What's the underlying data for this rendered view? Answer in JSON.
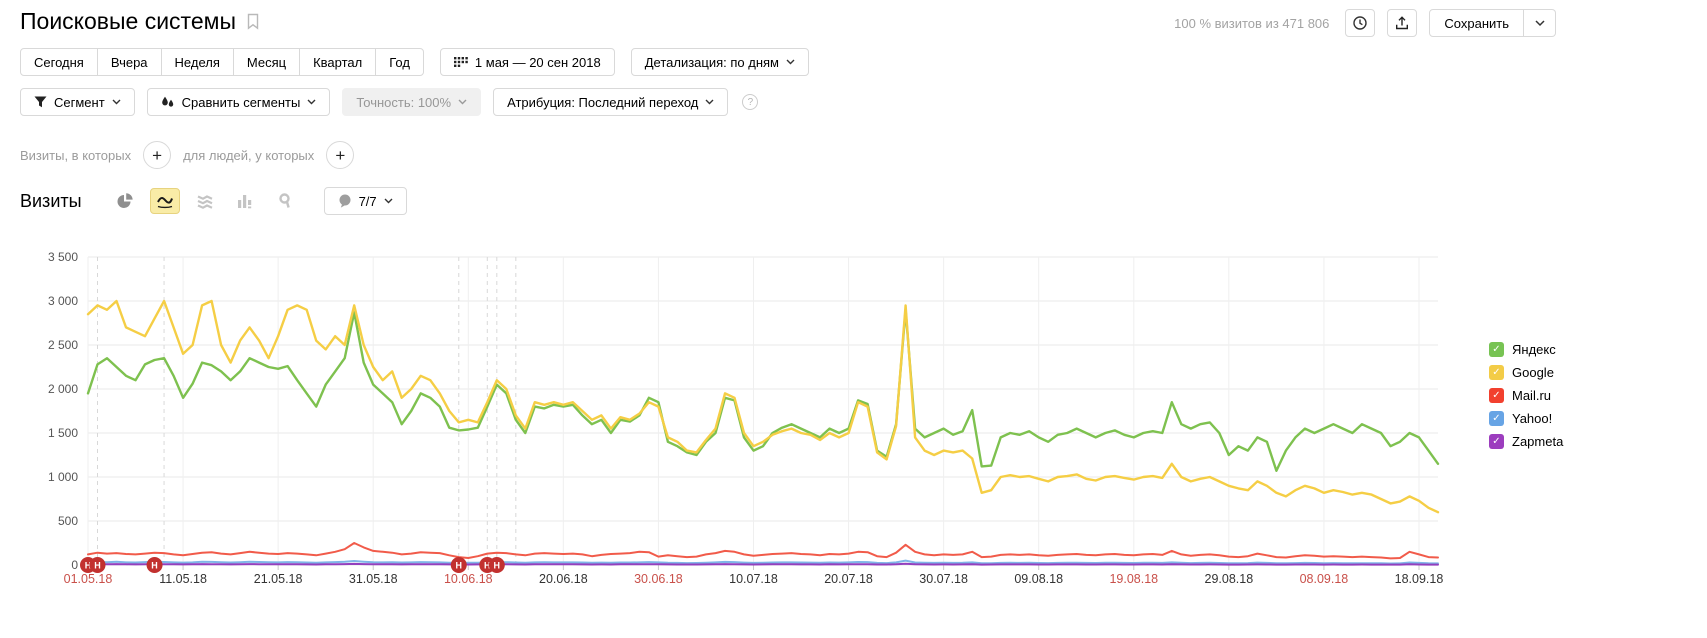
{
  "header": {
    "title": "Поисковые системы",
    "visits_meta": "100 % визитов из 471 806",
    "save_label": "Сохранить"
  },
  "toolbar": {
    "periods": [
      "Сегодня",
      "Вчера",
      "Неделя",
      "Месяц",
      "Квартал",
      "Год"
    ],
    "date_range": "1 мая — 20 сен 2018",
    "detalization": "Детализация: по дням"
  },
  "filters": {
    "segment": "Сегмент",
    "compare_segments": "Сравнить сегменты",
    "accuracy": "Точность: 100%",
    "attribution": "Атрибуция: Последний переход",
    "help": "?"
  },
  "conditions": {
    "visits_label": "Визиты, в которых",
    "people_label": "для людей, у которых",
    "plus": "+"
  },
  "metric": {
    "title": "Визиты",
    "annotations": "7/7"
  },
  "colors": {
    "grid": "#eaeaea",
    "dashed": "#d8d8d8",
    "tick_text": "#333333",
    "tick_text_holiday": "#c9504a",
    "ytick_text": "#555555",
    "annotation_bg": "#c2312f",
    "annotation_text": "#ffffff"
  },
  "legend": [
    {
      "label": "Яндекс",
      "color": "#77C353"
    },
    {
      "label": "Google",
      "color": "#F3CC47"
    },
    {
      "label": "Mail.ru",
      "color": "#F2402E"
    },
    {
      "label": "Yahoo!",
      "color": "#67A4E5"
    },
    {
      "label": "Zapmeta",
      "color": "#9C3DBE"
    }
  ],
  "chart_data": {
    "type": "line",
    "title": "Визиты",
    "x_start": "01.05.18",
    "x_end": "20.09.18",
    "days": 143,
    "ylim": [
      0,
      3500
    ],
    "ytick_values": [
      0,
      500,
      1000,
      1500,
      2000,
      2500,
      3000,
      3500
    ],
    "ytick_labels": [
      "0",
      "500",
      "1 000",
      "1 500",
      "2 000",
      "2 500",
      "3 000",
      "3 500"
    ],
    "xticks": [
      {
        "day": 0,
        "label": "01.05.18",
        "holiday": true
      },
      {
        "day": 10,
        "label": "11.05.18",
        "holiday": false
      },
      {
        "day": 20,
        "label": "21.05.18",
        "holiday": false
      },
      {
        "day": 30,
        "label": "31.05.18",
        "holiday": false
      },
      {
        "day": 40,
        "label": "10.06.18",
        "holiday": true
      },
      {
        "day": 50,
        "label": "20.06.18",
        "holiday": false
      },
      {
        "day": 60,
        "label": "30.06.18",
        "holiday": true
      },
      {
        "day": 70,
        "label": "10.07.18",
        "holiday": false
      },
      {
        "day": 80,
        "label": "20.07.18",
        "holiday": false
      },
      {
        "day": 90,
        "label": "30.07.18",
        "holiday": false
      },
      {
        "day": 100,
        "label": "09.08.18",
        "holiday": false
      },
      {
        "day": 110,
        "label": "19.08.18",
        "holiday": true
      },
      {
        "day": 120,
        "label": "29.08.18",
        "holiday": false
      },
      {
        "day": 130,
        "label": "08.09.18",
        "holiday": true
      },
      {
        "day": 140,
        "label": "18.09.18",
        "holiday": false
      }
    ],
    "dashed_days": [
      1,
      8,
      39,
      42,
      43,
      45
    ],
    "annotation_days": [
      0,
      1,
      7,
      39,
      42,
      43
    ],
    "annotation_glyph": "Н",
    "series": [
      {
        "name": "Яндекс",
        "color": "#7EC14F",
        "width": 2.4,
        "values": [
          1950,
          2280,
          2350,
          2250,
          2150,
          2100,
          2280,
          2330,
          2350,
          2150,
          1900,
          2060,
          2300,
          2270,
          2200,
          2100,
          2200,
          2350,
          2300,
          2250,
          2230,
          2260,
          2100,
          1950,
          1800,
          2050,
          2200,
          2350,
          2870,
          2300,
          2050,
          1950,
          1850,
          1600,
          1750,
          1950,
          1900,
          1800,
          1560,
          1530,
          1540,
          1560,
          1800,
          2050,
          1950,
          1650,
          1500,
          1800,
          1780,
          1820,
          1800,
          1820,
          1700,
          1600,
          1650,
          1500,
          1650,
          1630,
          1700,
          1900,
          1850,
          1400,
          1350,
          1280,
          1250,
          1400,
          1500,
          1900,
          1870,
          1450,
          1300,
          1350,
          1500,
          1560,
          1600,
          1550,
          1500,
          1450,
          1550,
          1500,
          1550,
          1870,
          1830,
          1300,
          1230,
          1600,
          2900,
          1550,
          1450,
          1500,
          1550,
          1480,
          1520,
          1760,
          1120,
          1130,
          1450,
          1500,
          1480,
          1520,
          1450,
          1400,
          1480,
          1500,
          1550,
          1500,
          1450,
          1500,
          1530,
          1480,
          1450,
          1500,
          1520,
          1500,
          1850,
          1600,
          1550,
          1600,
          1620,
          1500,
          1250,
          1350,
          1300,
          1450,
          1400,
          1070,
          1300,
          1450,
          1550,
          1500,
          1550,
          1600,
          1550,
          1500,
          1600,
          1550,
          1500,
          1350,
          1400,
          1500,
          1450,
          1300,
          1150
        ]
      },
      {
        "name": "Google",
        "color": "#F5CE45",
        "width": 2.4,
        "values": [
          2850,
          2950,
          2900,
          3000,
          2700,
          2650,
          2600,
          2800,
          3000,
          2700,
          2400,
          2500,
          2950,
          3000,
          2500,
          2300,
          2550,
          2700,
          2550,
          2350,
          2600,
          2900,
          2950,
          2900,
          2550,
          2450,
          2600,
          2500,
          2950,
          2500,
          2250,
          2100,
          2200,
          1900,
          2000,
          2150,
          2100,
          1950,
          1750,
          1620,
          1650,
          1620,
          1850,
          2100,
          2000,
          1700,
          1550,
          1850,
          1820,
          1850,
          1820,
          1850,
          1750,
          1650,
          1700,
          1550,
          1680,
          1650,
          1720,
          1850,
          1800,
          1450,
          1400,
          1300,
          1280,
          1420,
          1550,
          1950,
          1900,
          1500,
          1350,
          1400,
          1480,
          1520,
          1550,
          1500,
          1480,
          1420,
          1500,
          1450,
          1500,
          1850,
          1800,
          1280,
          1200,
          1580,
          2950,
          1450,
          1300,
          1250,
          1300,
          1280,
          1300,
          1210,
          820,
          850,
          1000,
          1020,
          1000,
          1010,
          980,
          950,
          1000,
          1010,
          1030,
          980,
          960,
          1000,
          1010,
          990,
          970,
          1000,
          1010,
          990,
          1150,
          1000,
          950,
          980,
          1000,
          950,
          900,
          870,
          850,
          950,
          900,
          820,
          780,
          850,
          900,
          870,
          820,
          850,
          830,
          800,
          820,
          800,
          750,
          700,
          720,
          780,
          730,
          650,
          600
        ]
      },
      {
        "name": "Mail.ru",
        "color": "#F15B4A",
        "width": 2,
        "values": [
          120,
          140,
          130,
          135,
          125,
          120,
          130,
          140,
          135,
          120,
          110,
          125,
          140,
          145,
          130,
          120,
          135,
          150,
          140,
          130,
          125,
          135,
          130,
          120,
          110,
          130,
          150,
          180,
          250,
          200,
          160,
          150,
          140,
          120,
          130,
          145,
          140,
          135,
          110,
          90,
          80,
          100,
          130,
          140,
          135,
          120,
          110,
          130,
          135,
          130,
          125,
          130,
          120,
          100,
          115,
          125,
          130,
          135,
          150,
          145,
          95,
          110,
          100,
          90,
          95,
          120,
          135,
          160,
          150,
          120,
          105,
          115,
          125,
          130,
          135,
          125,
          120,
          110,
          125,
          120,
          130,
          150,
          145,
          100,
          90,
          140,
          230,
          150,
          120,
          110,
          120,
          115,
          120,
          150,
          90,
          95,
          115,
          120,
          115,
          120,
          110,
          105,
          115,
          120,
          125,
          115,
          110,
          120,
          125,
          115,
          110,
          120,
          125,
          115,
          160,
          120,
          105,
          115,
          120,
          110,
          95,
          90,
          100,
          130,
          110,
          90,
          85,
          100,
          110,
          105,
          95,
          100,
          95,
          90,
          95,
          90,
          85,
          75,
          80,
          150,
          120,
          90,
          85
        ]
      },
      {
        "name": "Yahoo!",
        "color": "#7FB5E8",
        "width": 2,
        "values": [
          30,
          35,
          32,
          38,
          30,
          28,
          33,
          36,
          34,
          30,
          27,
          30,
          36,
          35,
          31,
          28,
          32,
          37,
          34,
          31,
          30,
          33,
          31,
          28,
          26,
          30,
          33,
          36,
          45,
          38,
          32,
          30,
          32,
          28,
          30,
          33,
          32,
          30,
          26,
          24,
          25,
          26,
          31,
          33,
          32,
          28,
          25,
          30,
          31,
          30,
          29,
          30,
          28,
          26,
          27,
          25,
          28,
          28,
          30,
          33,
          30,
          25,
          24,
          22,
          23,
          26,
          29,
          35,
          33,
          27,
          24,
          26,
          28,
          29,
          30,
          28,
          27,
          26,
          28,
          27,
          29,
          34,
          33,
          24,
          22,
          29,
          50,
          28,
          25,
          24,
          25,
          24,
          25,
          30,
          20,
          21,
          24,
          25,
          24,
          25,
          23,
          22,
          24,
          25,
          26,
          24,
          23,
          25,
          26,
          24,
          23,
          25,
          26,
          24,
          30,
          25,
          22,
          24,
          25,
          23,
          21,
          20,
          22,
          27,
          24,
          20,
          19,
          22,
          24,
          23,
          21,
          22,
          21,
          20,
          21,
          20,
          19,
          17,
          18,
          28,
          24,
          19,
          18
        ]
      },
      {
        "name": "Zapmeta",
        "color": "#9340BE",
        "width": 2,
        "values": [
          8,
          9,
          8,
          10,
          8,
          7,
          9,
          10,
          9,
          8,
          7,
          8,
          10,
          9,
          8,
          7,
          9,
          10,
          9,
          8,
          8,
          9,
          8,
          7,
          6,
          8,
          9,
          10,
          12,
          10,
          9,
          8,
          9,
          7,
          8,
          9,
          9,
          8,
          7,
          6,
          6,
          7,
          8,
          9,
          9,
          7,
          6,
          8,
          8,
          8,
          8,
          8,
          7,
          6,
          7,
          6,
          8,
          8,
          9,
          9,
          8,
          7,
          6,
          6,
          6,
          7,
          8,
          10,
          9,
          7,
          6,
          7,
          8,
          8,
          8,
          7,
          7,
          6,
          8,
          7,
          8,
          9,
          9,
          6,
          6,
          8,
          14,
          8,
          7,
          6,
          7,
          6,
          7,
          8,
          5,
          6,
          7,
          7,
          7,
          7,
          6,
          6,
          7,
          7,
          7,
          6,
          6,
          7,
          7,
          6,
          6,
          7,
          7,
          6,
          8,
          7,
          6,
          6,
          7,
          6,
          5,
          5,
          6,
          7,
          6,
          5,
          5,
          6,
          6,
          6,
          5,
          6,
          5,
          5,
          6,
          5,
          5,
          4,
          5,
          8,
          6,
          5,
          5
        ]
      }
    ]
  }
}
